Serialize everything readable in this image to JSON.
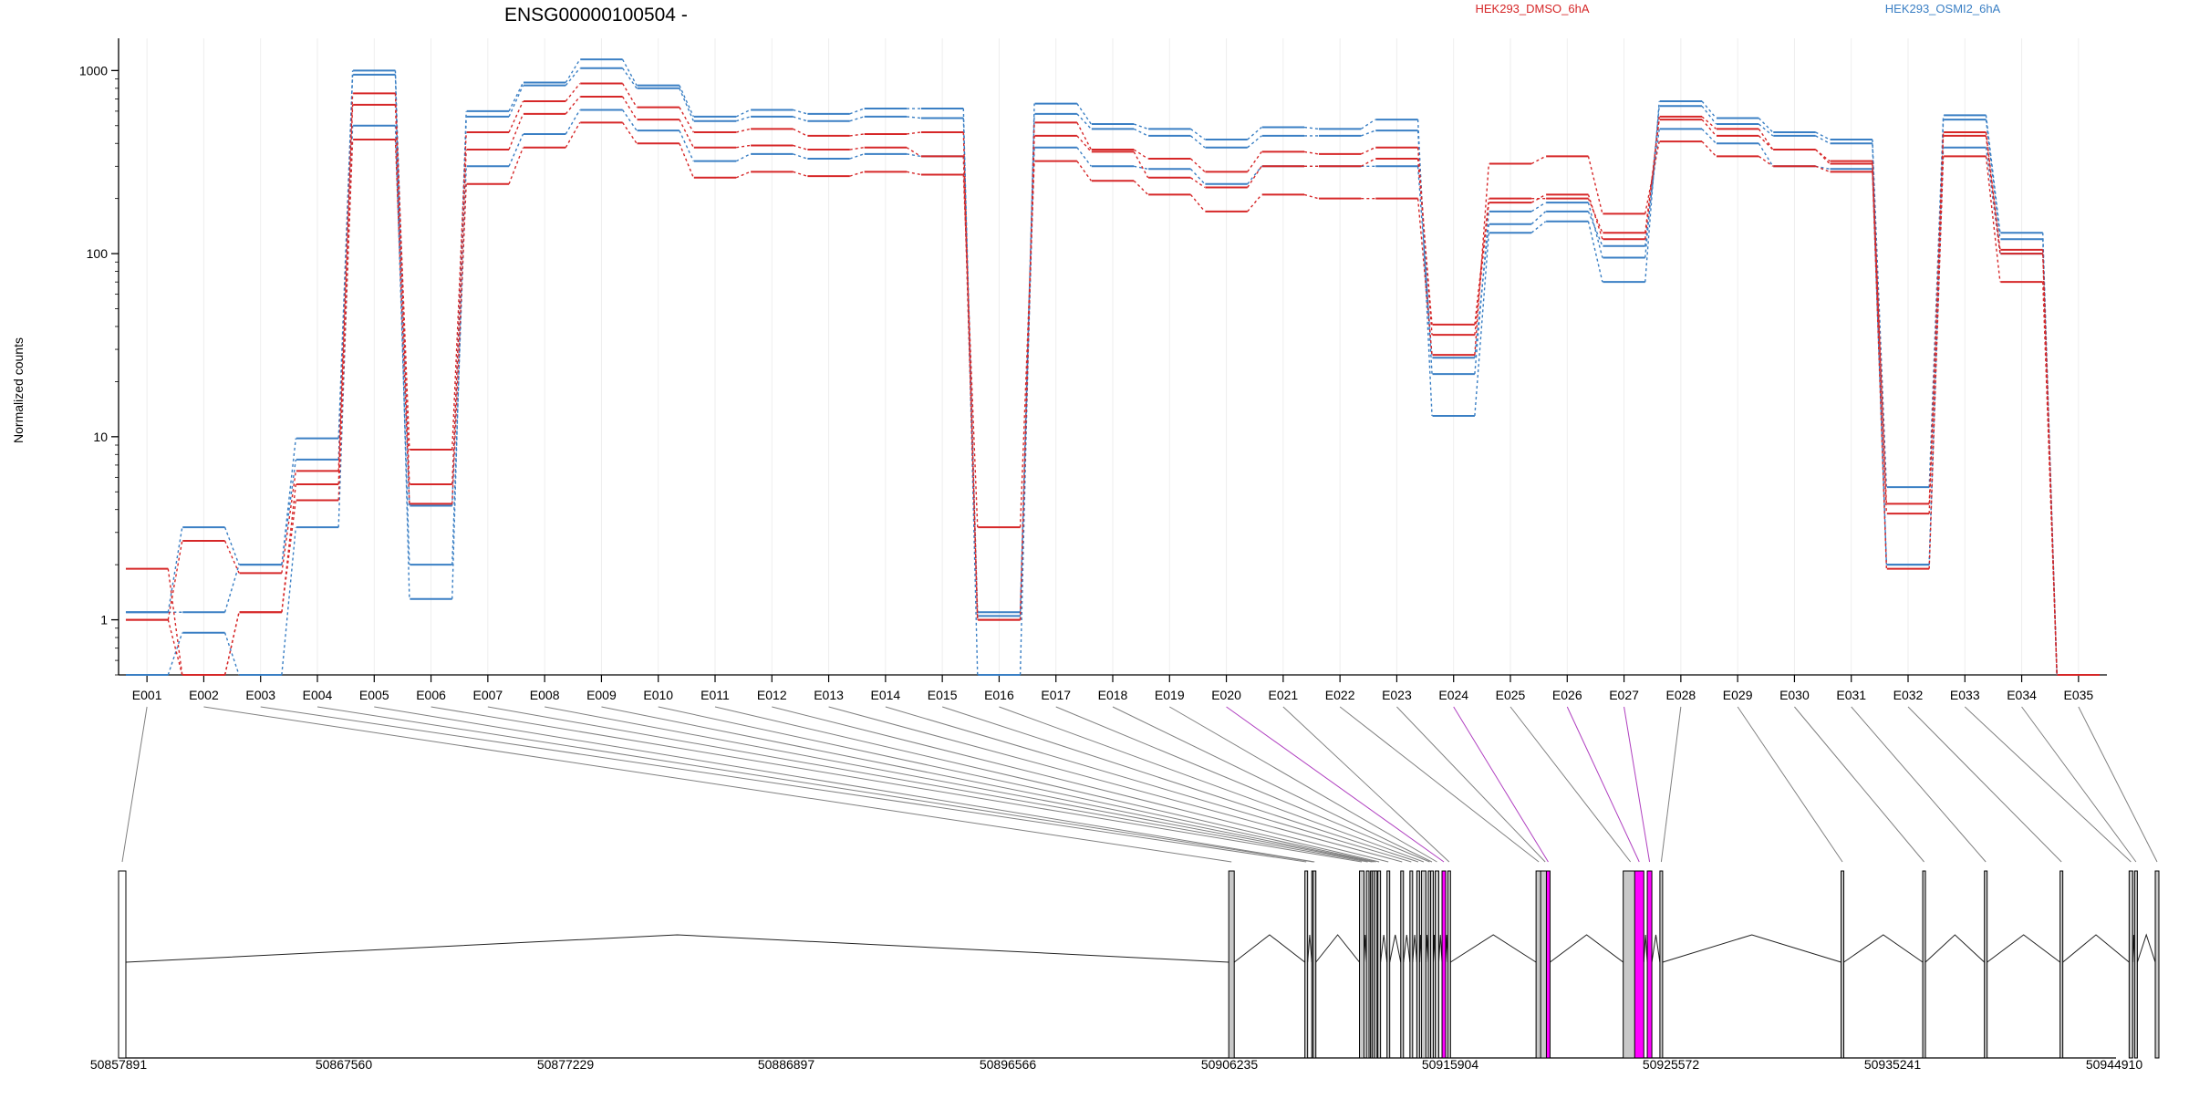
{
  "chart_data": {
    "type": "line",
    "title": "ENSG00000100504 -",
    "ylabel": "Normalized counts",
    "xlabel": "",
    "y_scale": "log",
    "ylim": [
      0.5,
      1500
    ],
    "y_ticks": [
      "1",
      "10",
      "100",
      "1000"
    ],
    "grid": "vertical lines at exon centers",
    "legend_placement": "top-right",
    "colors": {
      "HEK293_DMSO_6hA": "#d62728",
      "HEK293_OSMI2_6hA": "#3a7fc4",
      "highlight": "#ff00ff",
      "exon": "#c8c8c8"
    },
    "categories": [
      "E001",
      "E002",
      "E003",
      "E004",
      "E005",
      "E006",
      "E007",
      "E008",
      "E009",
      "E010",
      "E011",
      "E012",
      "E013",
      "E014",
      "E015",
      "E016",
      "E017",
      "E018",
      "E019",
      "E020",
      "E021",
      "E022",
      "E023",
      "E024",
      "E025",
      "E026",
      "E027",
      "E028",
      "E029",
      "E030",
      "E031",
      "E032",
      "E033",
      "E034",
      "E035"
    ],
    "series": [
      {
        "name": "HEK293_DMSO_6hA",
        "group": "HEK293_DMSO_6hA",
        "values": [
          1.9,
          0.5,
          1.1,
          4.5,
          420,
          4.3,
          240,
          380,
          520,
          400,
          260,
          280,
          265,
          280,
          270,
          3.2,
          320,
          250,
          210,
          170,
          210,
          200,
          200,
          28,
          310,
          340,
          165,
          410,
          340,
          300,
          280,
          1.9,
          340,
          70,
          0.5
        ]
      },
      {
        "name": "HEK293_DMSO_6hA",
        "group": "HEK293_DMSO_6hA",
        "values": [
          1.0,
          0.5,
          1.1,
          5.5,
          650,
          5.5,
          370,
          580,
          720,
          540,
          380,
          390,
          370,
          380,
          340,
          1.0,
          440,
          360,
          260,
          230,
          300,
          300,
          330,
          41,
          200,
          200,
          130,
          540,
          440,
          370,
          320,
          4.3,
          440,
          100,
          0.5
        ]
      },
      {
        "name": "HEK293_DMSO_6hA",
        "group": "HEK293_DMSO_6hA",
        "values": [
          1.0,
          2.7,
          1.8,
          6.5,
          750,
          8.5,
          460,
          680,
          850,
          630,
          460,
          480,
          440,
          450,
          460,
          1.0,
          520,
          370,
          330,
          280,
          360,
          350,
          380,
          36,
          190,
          210,
          120,
          560,
          480,
          370,
          310,
          3.8,
          460,
          105,
          0.5
        ]
      },
      {
        "name": "HEK293_OSMI2_6hA",
        "group": "HEK293_OSMI2_6hA",
        "values": [
          1.1,
          3.2,
          2.0,
          9.8,
          1000,
          4.2,
          600,
          860,
          1150,
          830,
          560,
          610,
          580,
          620,
          620,
          0.5,
          660,
          510,
          480,
          420,
          490,
          480,
          540,
          13,
          130,
          150,
          70,
          680,
          550,
          460,
          420,
          5.3,
          570,
          130,
          0.5
        ]
      },
      {
        "name": "HEK293_OSMI2_6hA",
        "group": "HEK293_OSMI2_6hA",
        "values": [
          1.1,
          1.1,
          2.0,
          7.5,
          950,
          1.3,
          560,
          830,
          1030,
          800,
          530,
          560,
          530,
          560,
          550,
          1.1,
          580,
          480,
          440,
          380,
          440,
          440,
          470,
          22,
          170,
          190,
          95,
          640,
          510,
          440,
          400,
          2.0,
          540,
          120,
          0.5
        ]
      },
      {
        "name": "HEK293_OSMI2_6hA",
        "group": "HEK293_OSMI2_6hA",
        "values": [
          0.5,
          0.85,
          0.5,
          3.2,
          500,
          2.0,
          300,
          450,
          610,
          470,
          320,
          350,
          330,
          350,
          340,
          1.05,
          380,
          300,
          290,
          240,
          300,
          300,
          300,
          27,
          145,
          170,
          110,
          480,
          400,
          300,
          290,
          2.0,
          380,
          100,
          0.5
        ]
      }
    ],
    "highlighted_exons": [
      "E020",
      "E024",
      "E026",
      "E027"
    ],
    "exon_genomic_positions": [
      50857891,
      50906300,
      50909620,
      50909920,
      50909980,
      50912000,
      50912300,
      50912480,
      50912550,
      50912650,
      50912800,
      50913200,
      50913800,
      50914200,
      50914500,
      50914700,
      50915000,
      50915100,
      50915300,
      50915600,
      50915850,
      50919700,
      50919900,
      50920150,
      50923500,
      50924000,
      50924550,
      50925100,
      50933000,
      50936560,
      50939250,
      50942550,
      50945560,
      50945800,
      50946700
    ],
    "gene_coordinate_labels": [
      "50857891",
      "50867560",
      "50877229",
      "50886897",
      "50896566",
      "50906235",
      "50915904",
      "50925572",
      "50935241",
      "50944910"
    ]
  }
}
